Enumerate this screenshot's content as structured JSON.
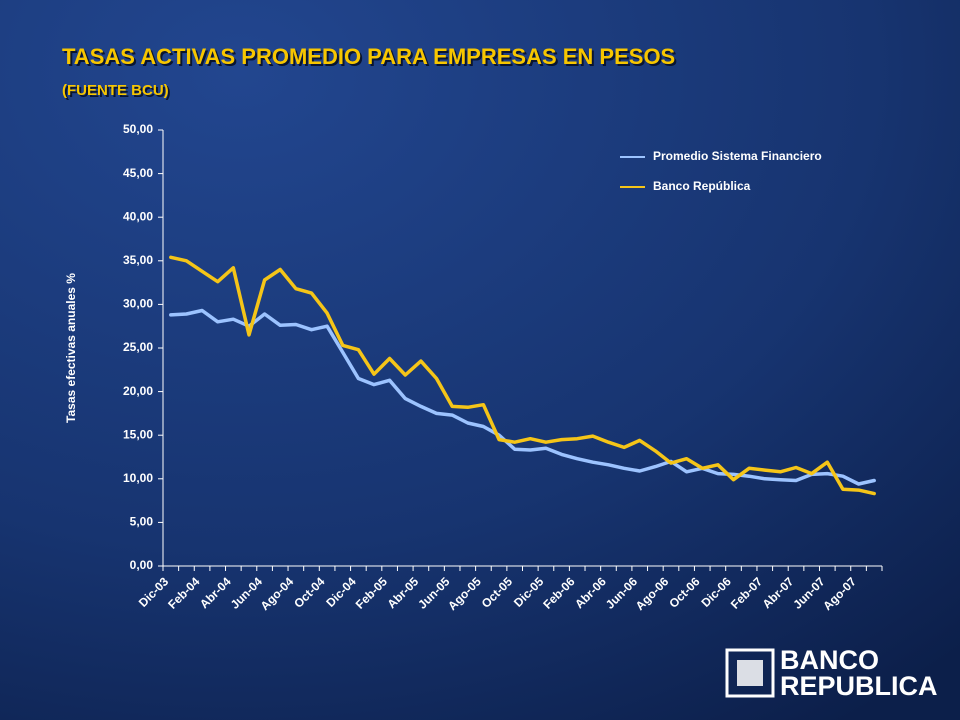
{
  "chart_data": {
    "type": "line",
    "title": "TASAS ACTIVAS PROMEDIO PARA EMPRESAS EN PESOS",
    "subtitle": "(FUENTE BCU)",
    "y_label": "Tasas efectivas anuales  %",
    "categories": [
      "Dic-03",
      null,
      "Feb-04",
      null,
      "Abr-04",
      null,
      "Jun-04",
      null,
      "Ago-04",
      null,
      "Oct-04",
      null,
      "Dic-04",
      null,
      "Feb-05",
      null,
      "Abr-05",
      null,
      "Jun-05",
      null,
      "Ago-05",
      null,
      "Oct-05",
      null,
      "Dic-05",
      null,
      "Feb-06",
      null,
      "Abr-06",
      null,
      "Jun-06",
      null,
      "Ago-06",
      null,
      "Oct-06",
      null,
      "Dic-06",
      null,
      "Feb-07",
      null,
      "Abr-07",
      null,
      "Jun-07",
      null,
      "Ago-07",
      null
    ],
    "series": [
      {
        "name": "Promedio Sistema Financiero",
        "color": "#9cc3ff",
        "values": [
          28.8,
          28.9,
          29.3,
          28.0,
          28.3,
          27.5,
          28.9,
          27.6,
          27.7,
          27.1,
          27.5,
          24.5,
          21.5,
          20.8,
          21.3,
          19.2,
          18.3,
          17.5,
          17.3,
          16.4,
          16.0,
          15.0,
          13.4,
          13.3,
          13.5,
          12.8,
          12.3,
          11.9,
          11.6,
          11.2,
          10.9,
          11.4,
          12.0,
          10.8,
          11.2,
          10.6,
          10.5,
          10.3,
          10.0,
          9.9,
          9.8,
          10.5,
          10.6,
          10.3,
          9.4,
          9.8
        ]
      },
      {
        "name": "Banco República",
        "color": "#f5c518",
        "values": [
          35.4,
          35.0,
          33.8,
          32.6,
          34.2,
          26.5,
          32.8,
          34.0,
          31.8,
          31.3,
          29.0,
          25.3,
          24.8,
          22.0,
          23.8,
          21.9,
          23.5,
          21.5,
          18.3,
          18.2,
          18.5,
          14.5,
          14.2,
          14.6,
          14.2,
          14.5,
          14.6,
          14.9,
          14.2,
          13.6,
          14.4,
          13.2,
          11.8,
          12.3,
          11.2,
          11.6,
          9.9,
          11.2,
          11.0,
          10.8,
          11.3,
          10.6,
          11.9,
          8.8,
          8.7,
          8.3
        ]
      }
    ],
    "ylim": [
      0,
      50
    ],
    "yticks": [
      {
        "value": 0,
        "label": "0,00"
      },
      {
        "value": 5,
        "label": "5,00"
      },
      {
        "value": 10,
        "label": "10,00"
      },
      {
        "value": 15,
        "label": "15,00"
      },
      {
        "value": 20,
        "label": "20,00"
      },
      {
        "value": 25,
        "label": "25,00"
      },
      {
        "value": 30,
        "label": "30,00"
      },
      {
        "value": 35,
        "label": "35,00"
      },
      {
        "value": 40,
        "label": "40,00"
      },
      {
        "value": 45,
        "label": "45,00"
      },
      {
        "value": 50,
        "label": "50,00"
      }
    ],
    "grid": false,
    "legend": "upper right"
  },
  "logo": [
    "BANCO",
    "REPUBLICA"
  ]
}
